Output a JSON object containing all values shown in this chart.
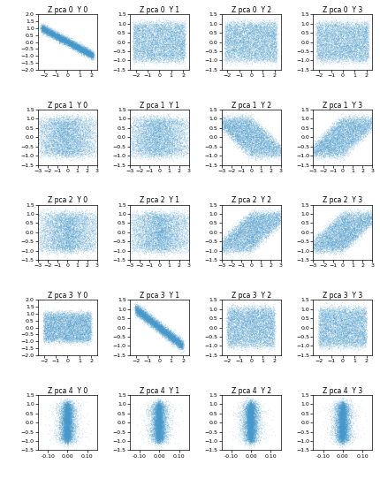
{
  "nrows": 5,
  "ncols": 4,
  "n_points": 8000,
  "point_color": "#4499cc",
  "point_size": 0.3,
  "point_alpha": 0.4,
  "row_labels": [
    "Z pca 0",
    "Z pca 1",
    "Z pca 2",
    "Z pca 3",
    "Z pca 4"
  ],
  "col_labels": [
    "Y 0",
    "Y 1",
    "Y 2",
    "Y 3"
  ],
  "figsize": [
    4.3,
    5.42
  ],
  "dpi": 100,
  "seed": 42,
  "title_fontsize": 5.5,
  "tick_fontsize": 4.5
}
